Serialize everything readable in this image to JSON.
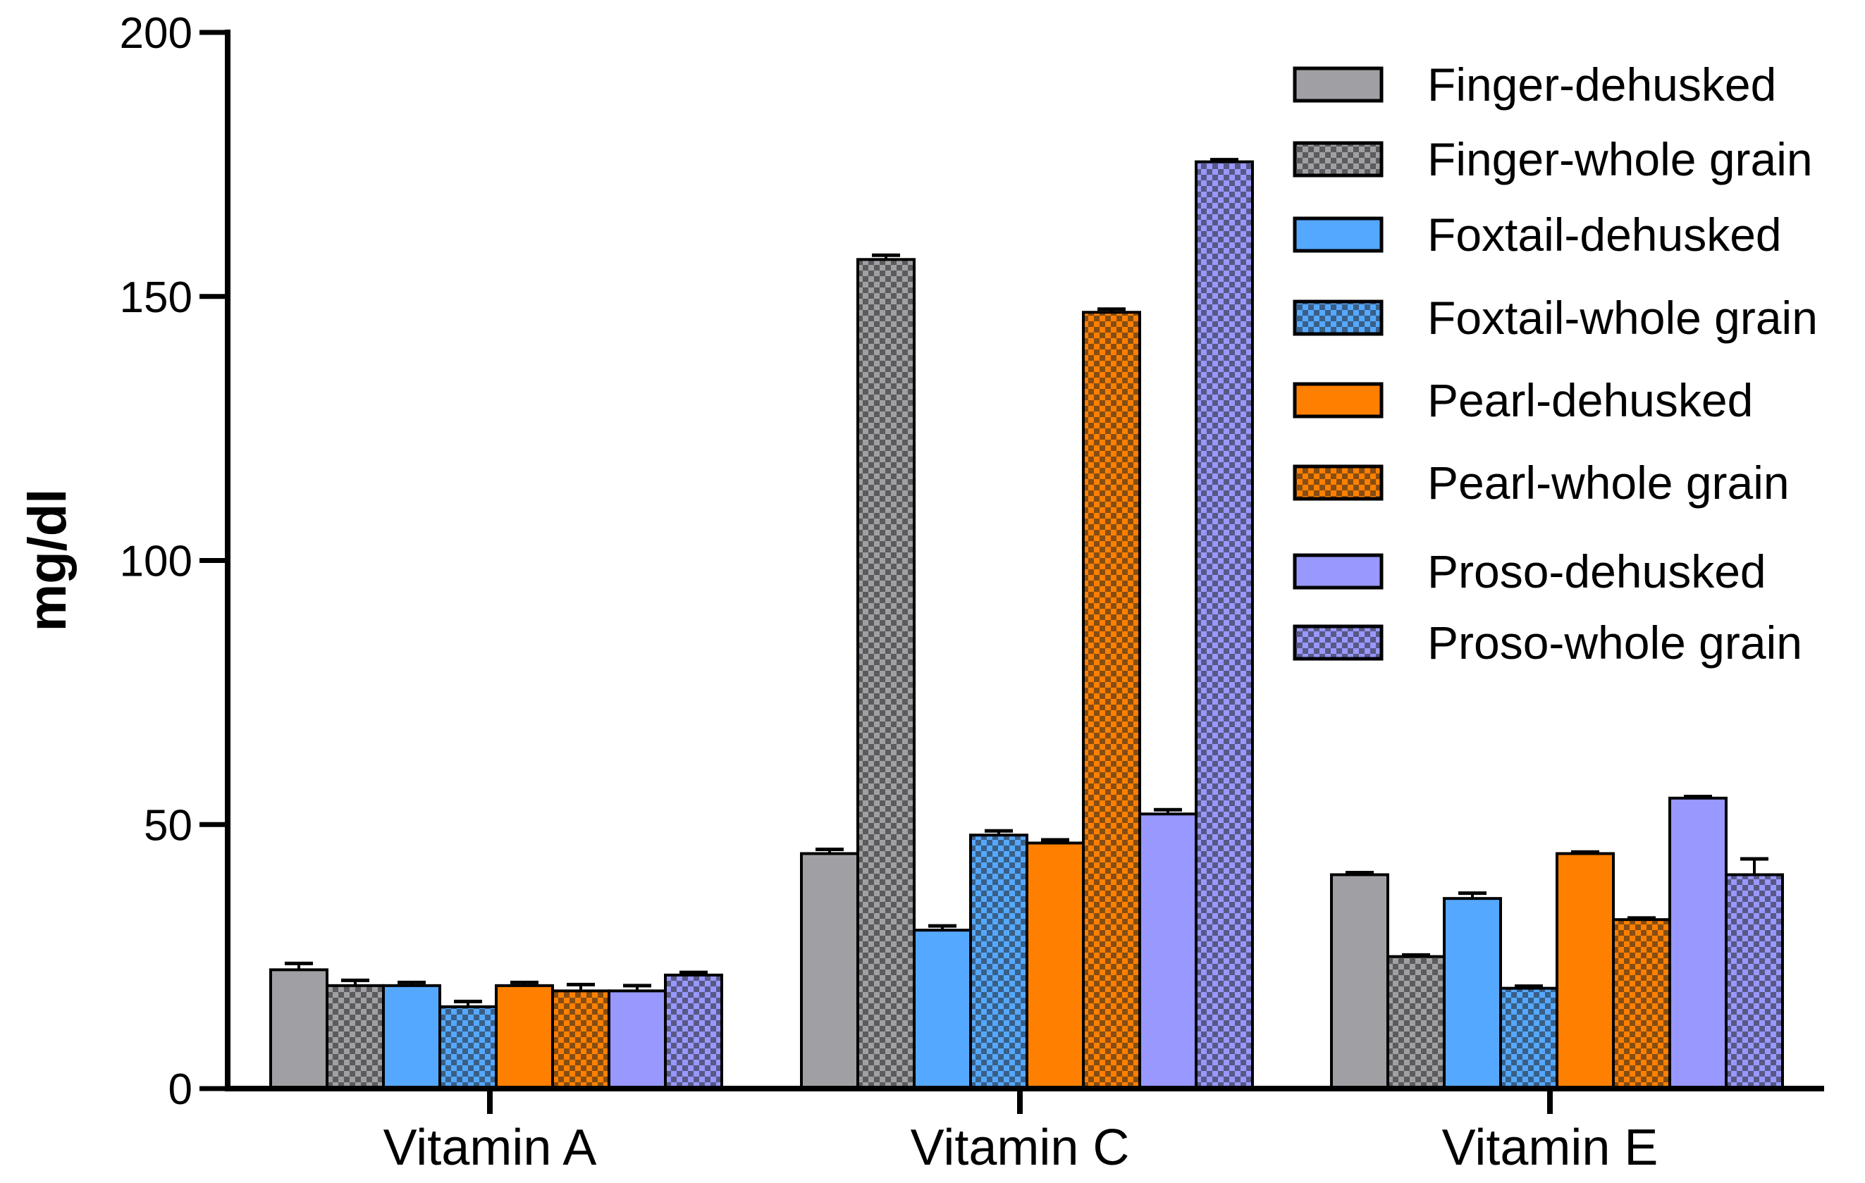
{
  "chart_data": {
    "type": "bar",
    "title": "",
    "xlabel": "",
    "ylabel": "mg/dl",
    "ylim": [
      0,
      200
    ],
    "yticks": [
      0,
      50,
      100,
      150,
      200
    ],
    "grid": false,
    "legend_position": "top-right",
    "categories": [
      "Vitamin A",
      "Vitamin C",
      "Vitamin E"
    ],
    "series": [
      {
        "name": "Finger-dehusked",
        "color": "#a0a0a4",
        "pattern": "solid",
        "values": [
          22.5,
          44.5,
          40.5
        ],
        "errors": [
          1.2,
          0.8,
          0.4
        ]
      },
      {
        "name": "Finger-whole grain",
        "color": "#a0a0a4",
        "pattern": "checker",
        "values": [
          19.5,
          157.0,
          25.0
        ],
        "errors": [
          1.0,
          0.8,
          0.3
        ]
      },
      {
        "name": "Foxtail-dehusked",
        "color": "#55a8ff",
        "pattern": "solid",
        "values": [
          19.5,
          30.0,
          36.0
        ],
        "errors": [
          0.6,
          0.8,
          1.0
        ]
      },
      {
        "name": "Foxtail-whole grain",
        "color": "#55a8ff",
        "pattern": "checker",
        "values": [
          15.5,
          48.0,
          19.0
        ],
        "errors": [
          1.0,
          0.8,
          0.4
        ]
      },
      {
        "name": "Pearl-dehusked",
        "color": "#ff8000",
        "pattern": "solid",
        "values": [
          19.5,
          46.5,
          44.5
        ],
        "errors": [
          0.6,
          0.6,
          0.3
        ]
      },
      {
        "name": "Pearl-whole grain",
        "color": "#ff8000",
        "pattern": "checker",
        "values": [
          18.5,
          147.0,
          32.0
        ],
        "errors": [
          1.2,
          0.6,
          0.3
        ]
      },
      {
        "name": "Proso-dehusked",
        "color": "#9898ff",
        "pattern": "solid",
        "values": [
          18.5,
          52.0,
          55.0
        ],
        "errors": [
          1.0,
          0.8,
          0.3
        ]
      },
      {
        "name": "Proso-whole grain",
        "color": "#9898ff",
        "pattern": "checker",
        "values": [
          21.5,
          175.5,
          40.5
        ],
        "errors": [
          0.5,
          0.4,
          3.0
        ]
      }
    ]
  }
}
